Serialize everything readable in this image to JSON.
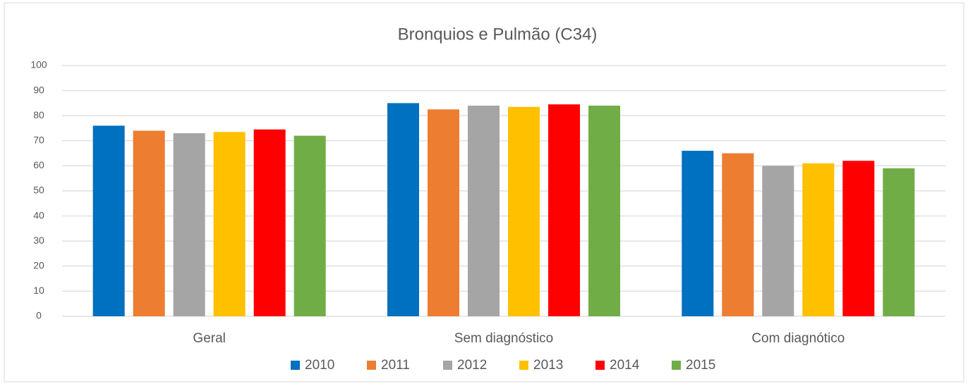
{
  "chart_data": {
    "type": "bar",
    "title": "Bronquios e Pulmão (C34)",
    "categories": [
      "Geral",
      "Sem diagnóstico",
      "Com diagnótico"
    ],
    "series": [
      {
        "name": "2010",
        "color": "#0070c0",
        "values": [
          76,
          85,
          66
        ]
      },
      {
        "name": "2011",
        "color": "#ed7d31",
        "values": [
          74,
          82.5,
          65
        ]
      },
      {
        "name": "2012",
        "color": "#a5a5a5",
        "values": [
          73,
          84,
          60
        ]
      },
      {
        "name": "2013",
        "color": "#ffc000",
        "values": [
          73.5,
          83.5,
          61
        ]
      },
      {
        "name": "2014",
        "color": "#ff0000",
        "values": [
          74.5,
          84.5,
          62
        ]
      },
      {
        "name": "2015",
        "color": "#70ad47",
        "values": [
          72,
          84,
          59
        ]
      }
    ],
    "ylim": [
      0,
      100
    ],
    "yticks": [
      0,
      10,
      20,
      30,
      40,
      50,
      60,
      70,
      80,
      90,
      100
    ],
    "grid": true,
    "legend": "bottom"
  }
}
